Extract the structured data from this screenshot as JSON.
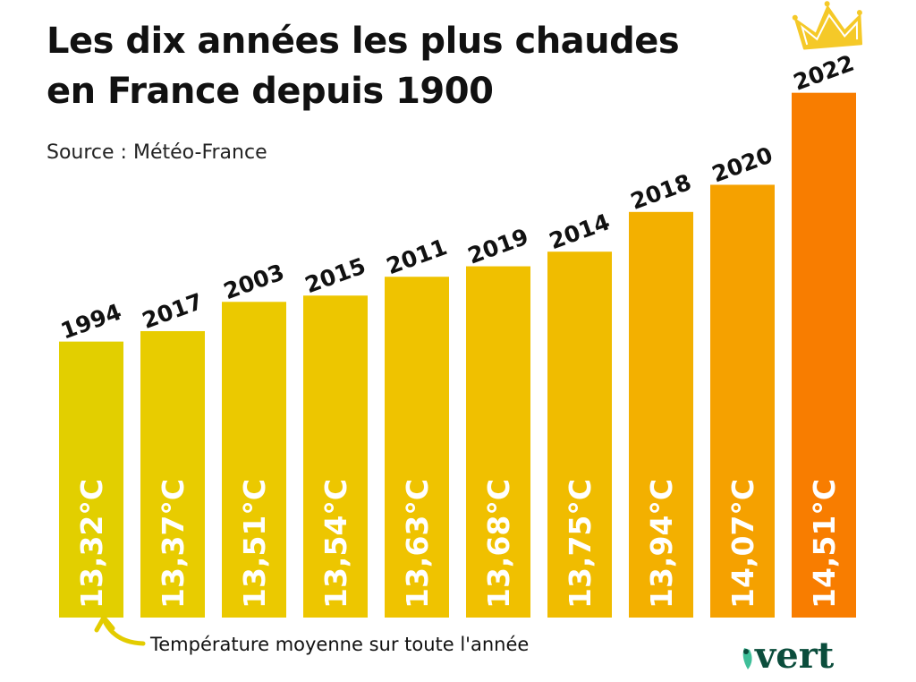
{
  "title_line1": "Les dix années les plus chaudes",
  "title_line2": "en France depuis 1900",
  "source": "Source : Météo-France",
  "note": "Température moyenne sur toute l'année",
  "logo_text": "vert",
  "colors": {
    "logo": "#0b4d3c",
    "arrow": "#e3cc00",
    "crown": "#f5c928"
  },
  "chart_data": {
    "type": "bar",
    "categories": [
      "1994",
      "2017",
      "2003",
      "2015",
      "2011",
      "2019",
      "2014",
      "2018",
      "2020",
      "2022"
    ],
    "values": [
      13.32,
      13.37,
      13.51,
      13.54,
      13.63,
      13.68,
      13.75,
      13.94,
      14.07,
      14.51
    ],
    "value_labels": [
      "13,32°C",
      "13,37°C",
      "13,51°C",
      "13,54°C",
      "13,63°C",
      "13,68°C",
      "13,75°C",
      "13,94°C",
      "14,07°C",
      "14,51°C"
    ],
    "bar_colors": [
      "#e2cf00",
      "#e8cc00",
      "#ebc900",
      "#edc600",
      "#efc300",
      "#f0c000",
      "#f0bc00",
      "#f3b000",
      "#f5a100",
      "#f87d00"
    ],
    "ylim": [
      12,
      14.6
    ],
    "grid": false,
    "highlight": "2022 (crown icon)"
  }
}
